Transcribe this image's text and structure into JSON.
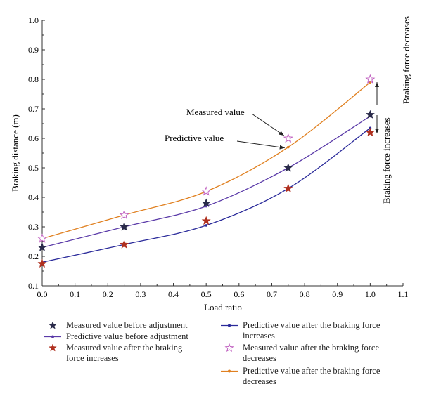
{
  "chart_data": {
    "type": "line",
    "title": "",
    "xlabel": "Load ratio",
    "ylabel": "Braking distance (m)",
    "xlim": [
      0.0,
      1.1
    ],
    "ylim": [
      0.1,
      1.0
    ],
    "xticks": [
      "0.0",
      "0.1",
      "0.2",
      "0.3",
      "0.4",
      "0.5",
      "0.6",
      "0.7",
      "0.8",
      "0.9",
      "1.0",
      "1.1"
    ],
    "yticks": [
      "0.1",
      "0.2",
      "0.3",
      "0.4",
      "0.5",
      "0.6",
      "0.7",
      "0.8",
      "0.9",
      "1.0"
    ],
    "grid": false,
    "legend_position": "bottom",
    "colors": {
      "navy": "#2a2b4a",
      "purple": "#5a3aa8",
      "red": "#b0301f",
      "pink": "#c060c0",
      "orange": "#e08020"
    },
    "series": [
      {
        "name": "Measured value before adjustment",
        "kind": "marker",
        "marker": "star-filled",
        "color": "#2a2b4a",
        "x": [
          0.0,
          0.25,
          0.5,
          0.75,
          1.0
        ],
        "y": [
          0.23,
          0.3,
          0.38,
          0.5,
          0.68
        ]
      },
      {
        "name": "Predictive value before adjustment",
        "kind": "line",
        "color": "#5a3aa8",
        "x": [
          0.0,
          0.25,
          0.5,
          0.75,
          1.0
        ],
        "y": [
          0.23,
          0.3,
          0.37,
          0.5,
          0.675
        ]
      },
      {
        "name": "Measured value after the braking force increases",
        "kind": "marker",
        "marker": "star-filled",
        "color": "#b0301f",
        "x": [
          0.0,
          0.25,
          0.5,
          0.75,
          1.0
        ],
        "y": [
          0.175,
          0.24,
          0.32,
          0.43,
          0.62
        ]
      },
      {
        "name": "Predictive value after the braking force increases",
        "kind": "line",
        "color": "#2a2a9a",
        "x": [
          0.0,
          0.25,
          0.5,
          0.75,
          1.0
        ],
        "y": [
          0.18,
          0.24,
          0.305,
          0.43,
          0.635
        ]
      },
      {
        "name": "Measured value after the braking force decreases",
        "kind": "marker",
        "marker": "star-open",
        "color": "#c060c0",
        "x": [
          0.0,
          0.25,
          0.5,
          0.75,
          1.0
        ],
        "y": [
          0.26,
          0.34,
          0.42,
          0.6,
          0.8
        ]
      },
      {
        "name": "Predictive value after the braking force decreases",
        "kind": "line",
        "color": "#e08020",
        "x": [
          0.0,
          0.25,
          0.5,
          0.75,
          1.0
        ],
        "y": [
          0.26,
          0.34,
          0.42,
          0.57,
          0.79
        ]
      }
    ],
    "annotations": {
      "measured_value": "Measured value",
      "predictive_value": "Predictive value",
      "braking_force_decreases": "Braking force decreases",
      "braking_force_increases": "Braking force increases"
    }
  },
  "legend": {
    "left": [
      "Measured value before adjustment",
      "Predictive value before adjustment",
      "Measured value after the braking force increases"
    ],
    "right": [
      "Predictive value after the braking force increases",
      "Measured value after the braking force decreases",
      "Predictive value after the braking force decreases"
    ]
  }
}
